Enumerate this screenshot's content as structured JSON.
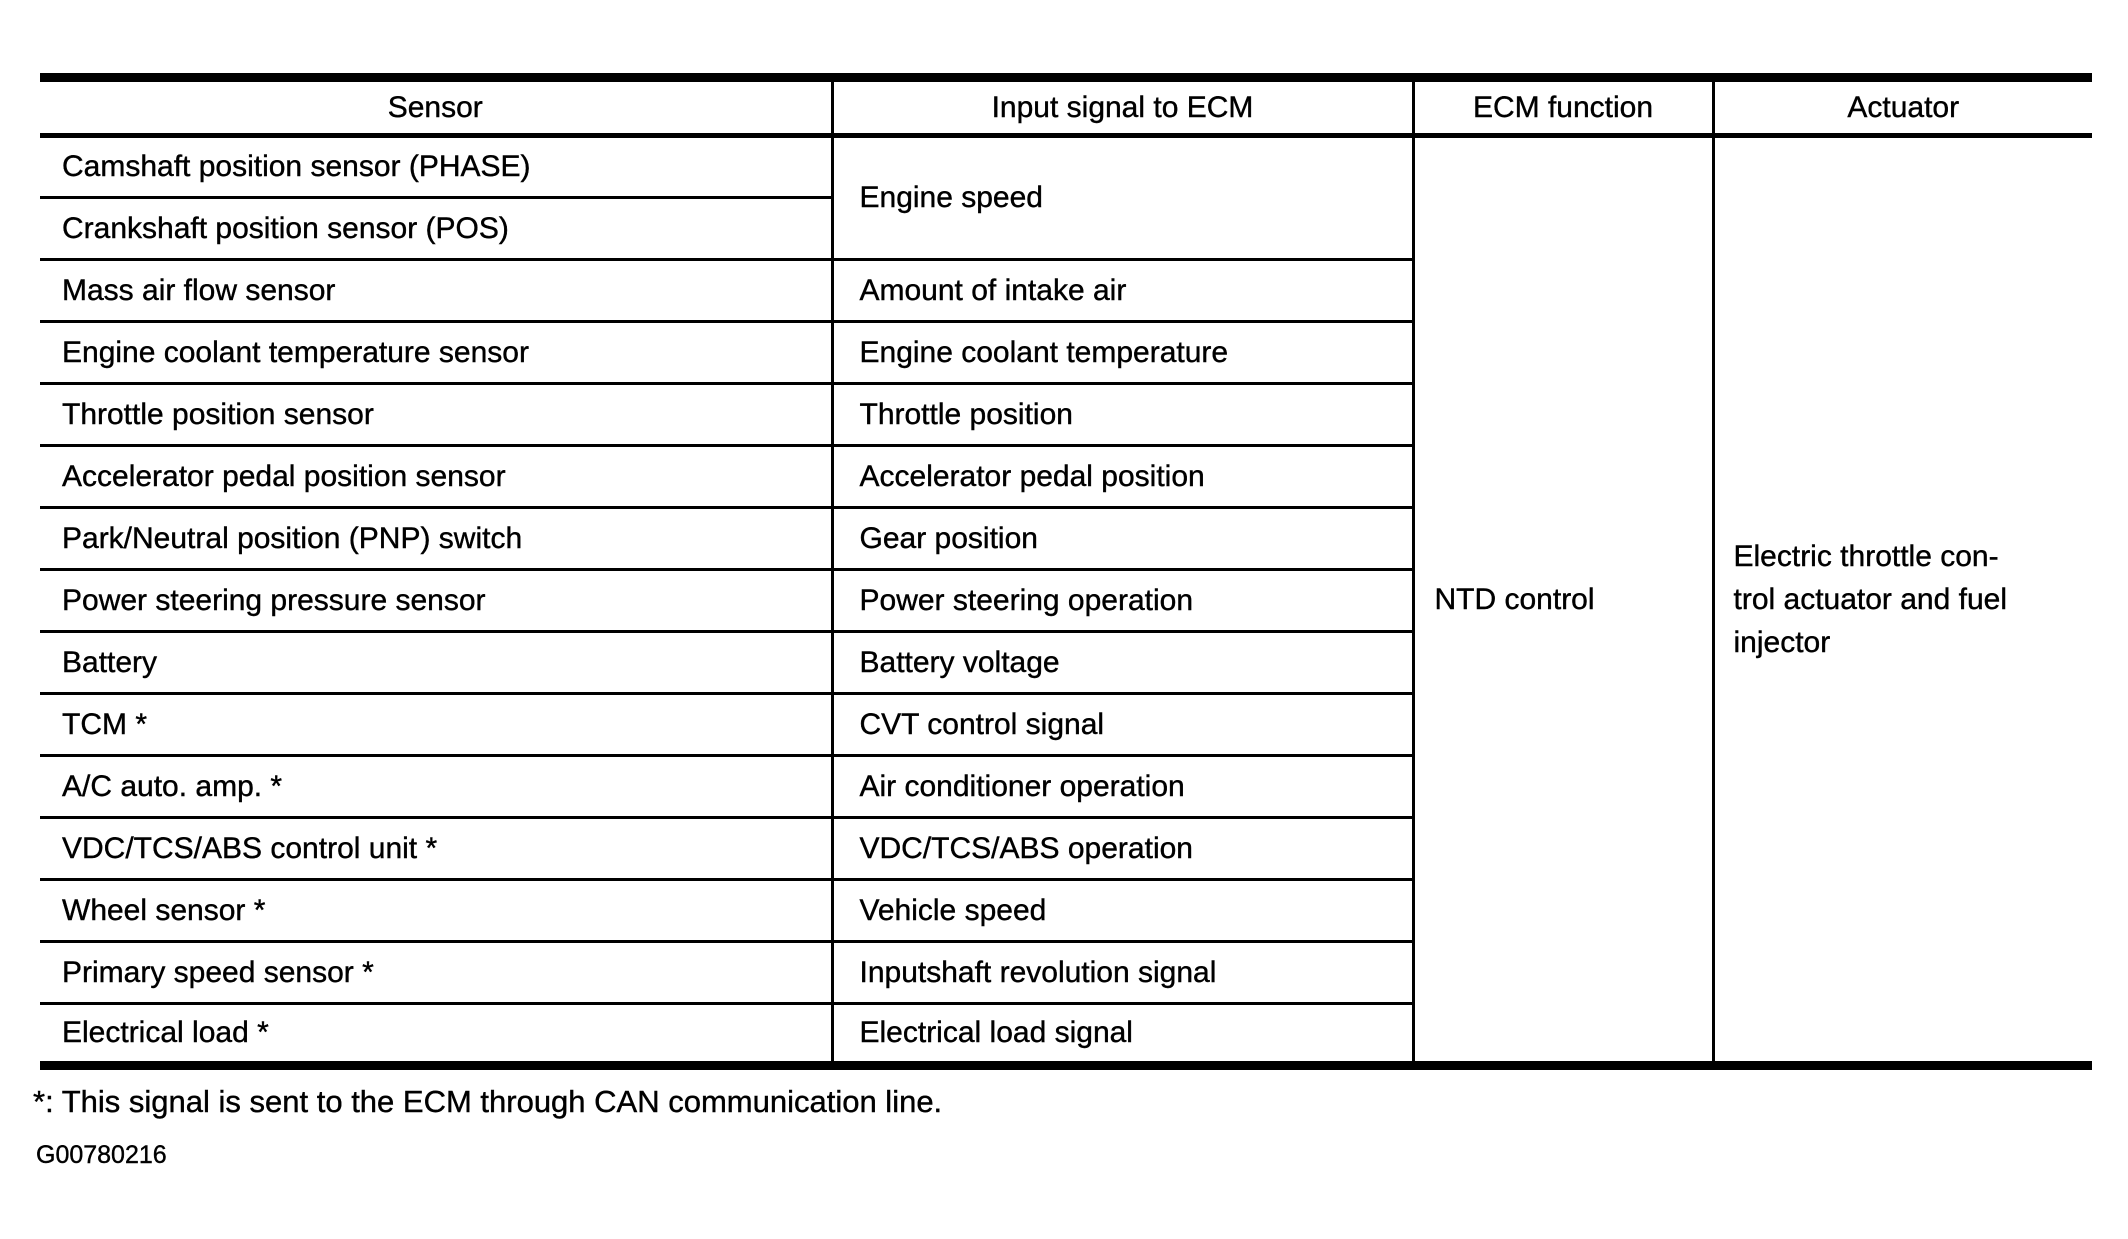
{
  "table": {
    "headers": [
      "Sensor",
      "Input signal to ECM",
      "ECM function",
      "Actuator"
    ],
    "rows": [
      {
        "sensor": "Camshaft position sensor (PHASE)",
        "input": "Engine speed",
        "input_rowspan": 2
      },
      {
        "sensor": "Crankshaft position sensor (POS)",
        "input": null
      },
      {
        "sensor": "Mass air flow sensor",
        "input": "Amount of intake air"
      },
      {
        "sensor": "Engine coolant temperature sensor",
        "input": "Engine coolant temperature"
      },
      {
        "sensor": "Throttle position sensor",
        "input": "Throttle position"
      },
      {
        "sensor": "Accelerator pedal position sensor",
        "input": "Accelerator pedal position"
      },
      {
        "sensor": "Park/Neutral position (PNP) switch",
        "input": "Gear position"
      },
      {
        "sensor": "Power steering pressure sensor",
        "input": "Power steering operation"
      },
      {
        "sensor": "Battery",
        "input": "Battery voltage"
      },
      {
        "sensor": "TCM *",
        "input": "CVT control signal"
      },
      {
        "sensor": "A/C auto. amp. *",
        "input": "Air conditioner operation"
      },
      {
        "sensor": "VDC/TCS/ABS control unit *",
        "input": "VDC/TCS/ABS operation"
      },
      {
        "sensor": "Wheel sensor *",
        "input": "Vehicle speed"
      },
      {
        "sensor": "Primary speed sensor *",
        "input": "Inputshaft revolution signal"
      },
      {
        "sensor": "Electrical load *",
        "input": "Electrical load signal"
      }
    ],
    "ecm_function": "NTD control",
    "actuator": "Electric throttle con-\ntrol actuator and fuel\ninjector"
  },
  "footnote": "*: This signal is sent to the ECM through CAN communication line.",
  "figure_id": "G00780216",
  "colors": {
    "ink": "#000000",
    "paper": "#ffffff"
  }
}
